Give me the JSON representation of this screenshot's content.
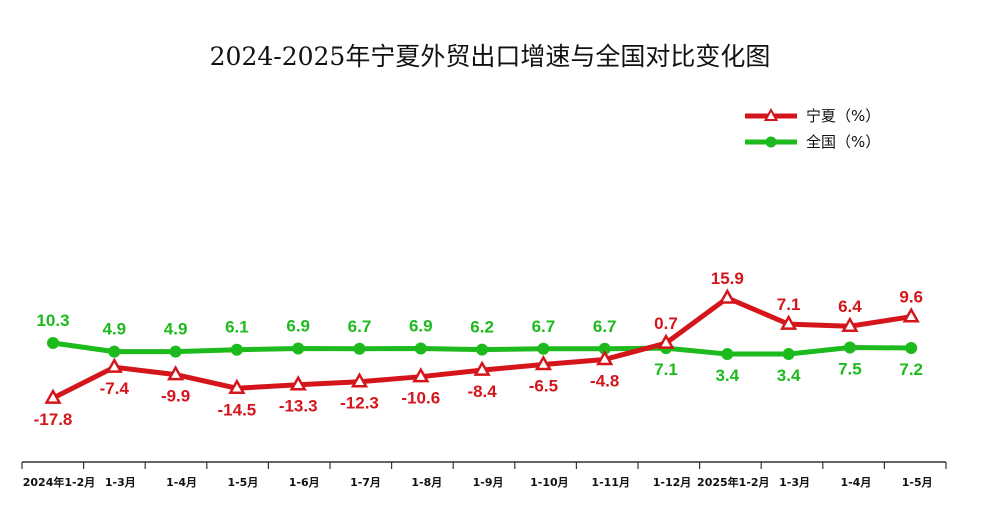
{
  "chart_data": {
    "type": "line",
    "title": "2024-2025年宁夏外贸出口增速与全国对比变化图",
    "categories": [
      "2024年1-2月",
      "1-3月",
      "1-4月",
      "1-5月",
      "1-6月",
      "1-7月",
      "1-8月",
      "1-9月",
      "1-10月",
      "1-11月",
      "1-12月",
      "2025年1-2月",
      "1-3月",
      "1-4月",
      "1-5月"
    ],
    "series": [
      {
        "name": "宁夏（%）",
        "color": "#d4161c",
        "marker": "triangle",
        "values": [
          -17.8,
          -7.4,
          -9.9,
          -14.5,
          -13.3,
          -12.3,
          -10.6,
          -8.4,
          -6.5,
          -4.8,
          0.7,
          15.9,
          7.1,
          6.4,
          9.6
        ]
      },
      {
        "name": "全国（%）",
        "color": "#1dba1d",
        "marker": "circle",
        "values": [
          10.3,
          4.9,
          4.9,
          6.1,
          6.9,
          6.7,
          6.9,
          6.2,
          6.7,
          6.7,
          7.1,
          3.4,
          3.4,
          7.5,
          7.2
        ]
      }
    ],
    "legend_position": "top-right",
    "grid": false,
    "xlabel": "",
    "ylabel": ""
  }
}
